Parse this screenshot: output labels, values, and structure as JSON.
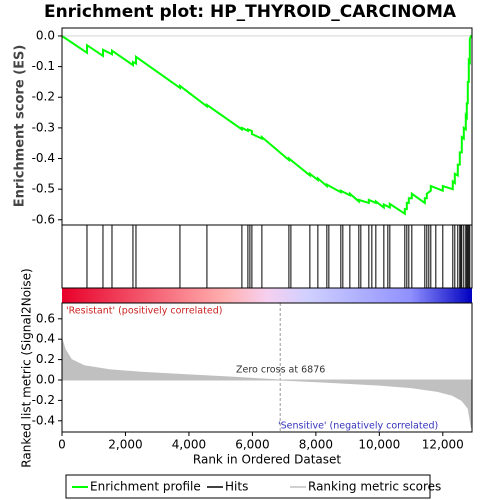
{
  "chart_data": [
    {
      "type": "line",
      "title": "Enrichment plot: HP_THYROID_CARCINOMA",
      "ylabel": "Enrichment score (ES)",
      "xlim": [
        0,
        12920
      ],
      "ylim": [
        -0.617,
        0.026
      ],
      "yticks": [
        {
          "value": 0,
          "label": "0.0"
        },
        -0.1,
        -0.2,
        -0.3,
        -0.4,
        -0.5,
        -0.6
      ],
      "series": [
        {
          "name": "Enrichment profile",
          "color": "#00ff00",
          "x": [
            0,
            787,
            787,
            1291,
            1291,
            1575,
            1575,
            2236,
            2236,
            2331,
            2331,
            3717,
            3717,
            4567,
            4567,
            5669,
            5669,
            5858,
            5858,
            5984,
            5984,
            6299,
            6299,
            7150,
            7150,
            7811,
            7811,
            8063,
            8063,
            8346,
            8346,
            8787,
            8787,
            9071,
            9071,
            9354,
            9354,
            9669,
            9669,
            9890,
            9890,
            10142,
            10142,
            10331,
            10331,
            10803,
            10803,
            10866,
            10866,
            10929,
            10929,
            11024,
            11024,
            11433,
            11433,
            11496,
            11496,
            11622,
            11622,
            12000,
            12000,
            12315,
            12315,
            12378,
            12378,
            12472,
            12472,
            12535,
            12535,
            12598,
            12598,
            12661,
            12661,
            12724,
            12724,
            12756,
            12756,
            12787,
            12787,
            12819,
            12819,
            12850,
            12850,
            12900
          ],
          "values": [
            0,
            -0.055,
            -0.03,
            -0.065,
            -0.045,
            -0.06,
            -0.048,
            -0.095,
            -0.085,
            -0.09,
            -0.068,
            -0.17,
            -0.163,
            -0.23,
            -0.225,
            -0.305,
            -0.3,
            -0.31,
            -0.305,
            -0.31,
            -0.32,
            -0.335,
            -0.33,
            -0.405,
            -0.4,
            -0.455,
            -0.45,
            -0.47,
            -0.465,
            -0.49,
            -0.485,
            -0.51,
            -0.505,
            -0.52,
            -0.515,
            -0.54,
            -0.535,
            -0.545,
            -0.535,
            -0.545,
            -0.54,
            -0.56,
            -0.55,
            -0.56,
            -0.548,
            -0.58,
            -0.565,
            -0.565,
            -0.545,
            -0.545,
            -0.53,
            -0.53,
            -0.515,
            -0.545,
            -0.53,
            -0.53,
            -0.515,
            -0.505,
            -0.49,
            -0.505,
            -0.49,
            -0.5,
            -0.475,
            -0.48,
            -0.45,
            -0.455,
            -0.42,
            -0.42,
            -0.38,
            -0.38,
            -0.33,
            -0.335,
            -0.3,
            -0.305,
            -0.26,
            -0.265,
            -0.22,
            -0.22,
            -0.15,
            -0.15,
            -0.08,
            -0.085,
            -0.01,
            0.003
          ]
        }
      ]
    },
    {
      "type": "hits",
      "xlim": [
        0,
        12920
      ],
      "series": [
        {
          "name": "Hits",
          "color": "#000000",
          "x": [
            787,
            1291,
            1575,
            2236,
            2331,
            3717,
            4567,
            5669,
            5858,
            5921,
            5984,
            6299,
            7150,
            7213,
            7811,
            8063,
            8346,
            8409,
            8787,
            8850,
            9071,
            9354,
            9417,
            9669,
            9764,
            9890,
            10142,
            10268,
            10331,
            10803,
            10866,
            10929,
            11024,
            11433,
            11496,
            11559,
            11622,
            11780,
            12000,
            12315,
            12378,
            12472,
            12535,
            12567,
            12598,
            12661,
            12724,
            12756,
            12787,
            12819,
            12850
          ]
        }
      ]
    },
    {
      "type": "area",
      "xlabel": "Rank in Ordered Dataset",
      "ylabel": "Ranked list metric (Signal2Noise)",
      "xlim": [
        0,
        12920
      ],
      "ylim": [
        -0.51,
        0.755
      ],
      "xticks": [
        0,
        {
          "value": 2000,
          "label": "2,000"
        },
        {
          "value": 4000,
          "label": "4,000"
        },
        {
          "value": 6000,
          "label": "6,000"
        },
        {
          "value": 8000,
          "label": "8,000"
        },
        {
          "value": 10000,
          "label": "10,000"
        },
        {
          "value": 12000,
          "label": "12,000"
        }
      ],
      "yticks": [
        0.6,
        0.4,
        0.2,
        {
          "value": 0,
          "label": "0.0"
        },
        -0.2,
        -0.4
      ],
      "series": [
        {
          "name": "Ranking metric scores",
          "color": "#c0c0c0",
          "x": [
            0,
            100,
            300,
            700,
            1500,
            2500,
            4000,
            5500,
            6876,
            8500,
            10000,
            11000,
            11800,
            12300,
            12600,
            12800,
            12900
          ],
          "values": [
            0.4,
            0.3,
            0.2,
            0.14,
            0.1,
            0.075,
            0.05,
            0.025,
            0,
            -0.025,
            -0.05,
            -0.075,
            -0.11,
            -0.15,
            -0.2,
            -0.28,
            -0.47
          ]
        }
      ],
      "annotations": [
        "'Resistant' (positively correlated)",
        "Zero cross at 6876",
        "'Sensitive' (negatively correlated)"
      ]
    }
  ]
}
